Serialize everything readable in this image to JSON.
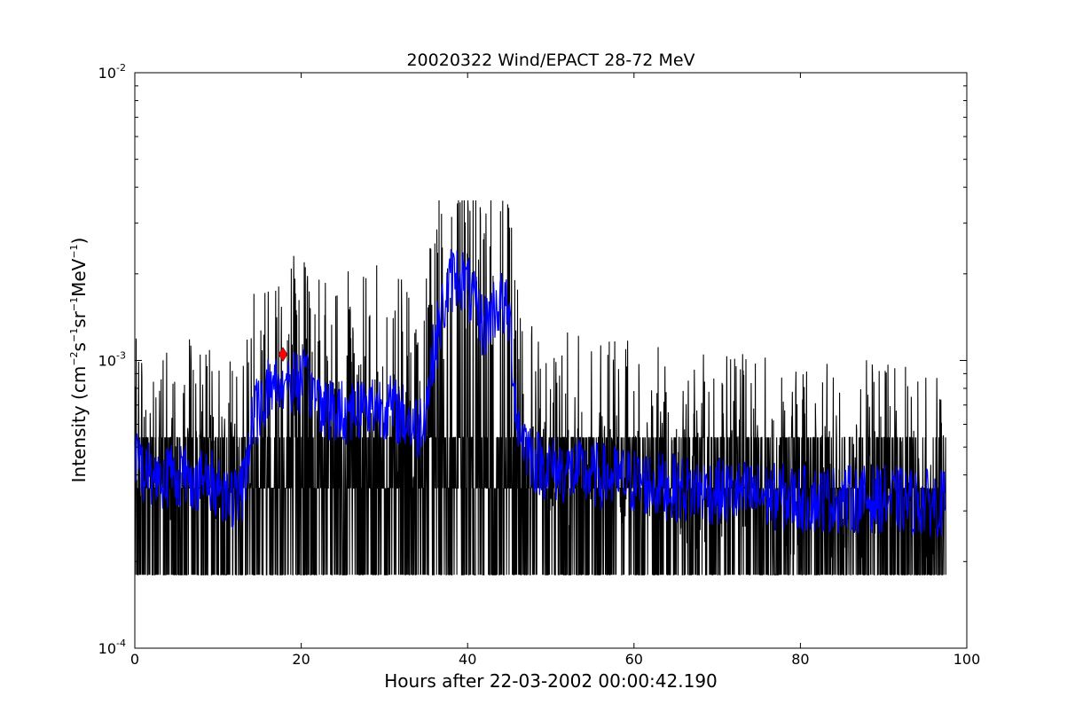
{
  "chart_data": {
    "type": "line",
    "title": "20020322 Wind/EPACT 28-72 MeV",
    "xlabel": "Hours after 22-03-2002 00:00:42.190",
    "ylabel": {
      "text": "Intensity (cm",
      "exp1": "−2",
      "part2": "s",
      "exp2": "−1",
      "part3": "sr",
      "exp3": "−1",
      "part4": "MeV",
      "exp4": "−1",
      "close": ")"
    },
    "xlim": [
      0,
      100
    ],
    "ylim": [
      0.0001,
      0.01
    ],
    "yscale": "log",
    "grid": false,
    "x_ticks": [
      {
        "value": 0,
        "label": "0"
      },
      {
        "value": 20,
        "label": "20"
      },
      {
        "value": 40,
        "label": "40"
      },
      {
        "value": 60,
        "label": "60"
      },
      {
        "value": 80,
        "label": "80"
      },
      {
        "value": 100,
        "label": "100"
      }
    ],
    "y_ticks": [
      {
        "value": 0.0001,
        "base": "10",
        "exp": "-4"
      },
      {
        "value": 0.001,
        "base": "10",
        "exp": "-3"
      },
      {
        "value": 0.01,
        "base": "10",
        "exp": "-2"
      }
    ],
    "envelope": {
      "x": [
        0,
        2,
        4,
        6,
        8,
        10,
        12,
        13,
        14,
        16,
        18,
        20,
        22,
        24,
        26,
        28,
        30,
        32,
        34,
        35,
        36,
        37,
        38,
        39,
        40,
        41,
        42,
        43,
        44,
        45,
        46,
        48,
        50,
        55,
        60,
        65,
        70,
        75,
        80,
        85,
        90,
        95,
        97.5
      ],
      "y": [
        0.00045,
        0.0004,
        0.0004,
        0.0004,
        0.00038,
        0.00037,
        0.00033,
        0.00035,
        0.0006,
        0.0008,
        0.00085,
        0.00085,
        0.00075,
        0.00065,
        0.00068,
        0.0007,
        0.0007,
        0.00065,
        0.00058,
        0.0007,
        0.0011,
        0.0015,
        0.0019,
        0.002,
        0.0018,
        0.0015,
        0.0013,
        0.0015,
        0.0016,
        0.0014,
        0.0006,
        0.00045,
        0.00042,
        0.0004,
        0.00038,
        0.00036,
        0.00035,
        0.00034,
        0.00033,
        0.00033,
        0.00033,
        0.00032,
        0.00032
      ]
    },
    "series": [
      {
        "color": "#000000",
        "style": "raw data, noisy, step levels 1.8e-4 / 3.6e-4 / 5.4e-4",
        "min_level": 0.00018
      },
      {
        "color": "#0000ff",
        "style": "running mean"
      }
    ],
    "marker": {
      "x": 17.8,
      "y": 0.00105,
      "color": "#ff0000",
      "shape": "diamond"
    }
  }
}
